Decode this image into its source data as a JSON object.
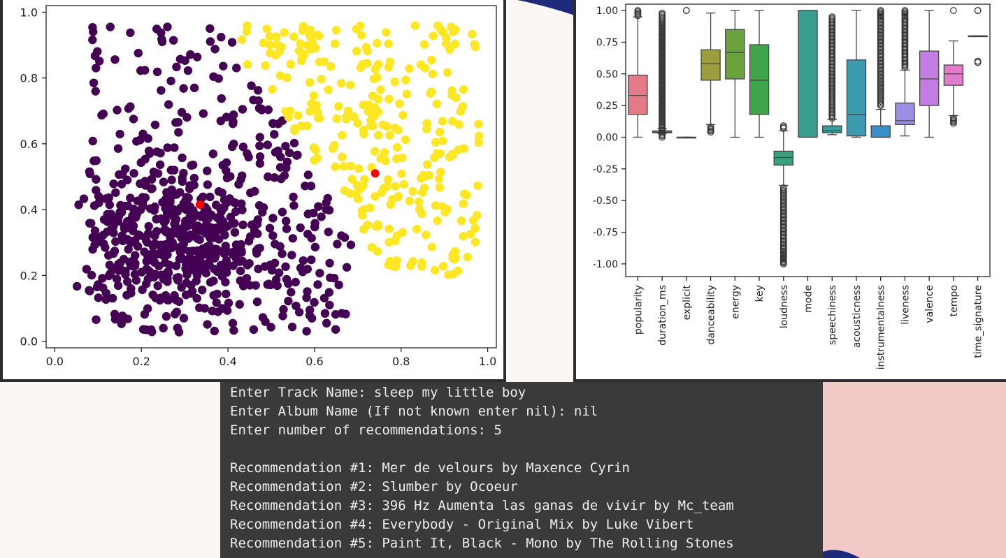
{
  "theme": {
    "page_bg": "#fbf7f2",
    "accent_navy": "#1f2a7a",
    "accent_pink": "#f3c9c8",
    "terminal_bg": "#3a3a3a",
    "terminal_fg": "#ededed"
  },
  "chart_data": [
    {
      "type": "scatter",
      "title": "",
      "xlabel": "",
      "ylabel": "",
      "xlim": [
        0.0,
        1.0
      ],
      "ylim": [
        0.0,
        1.0
      ],
      "xticks": [
        "0.0",
        "0.2",
        "0.4",
        "0.6",
        "0.8",
        "1.0"
      ],
      "yticks": [
        "0.0",
        "0.2",
        "0.4",
        "0.6",
        "0.8",
        "1.0"
      ],
      "clusters": [
        {
          "color": "#440154",
          "count": 720,
          "points": []
        },
        {
          "color": "#fde725",
          "count": 280,
          "points": []
        }
      ],
      "centroids": {
        "color": "#ff0000",
        "points": [
          [
            0.335,
            0.415
          ],
          [
            0.74,
            0.51
          ]
        ]
      },
      "grid": false
    },
    {
      "type": "box",
      "title": "",
      "xlabel": "",
      "ylabel": "",
      "ylim": [
        -1.1,
        1.05
      ],
      "yticks": [
        "-1.00",
        "-0.75",
        "-0.50",
        "-0.25",
        "0.00",
        "0.25",
        "0.50",
        "0.75",
        "1.00"
      ],
      "grid": false,
      "boxes": [
        {
          "label": "popularity",
          "color": "#e27a87",
          "whislo": 0.0,
          "q1": 0.18,
          "med": 0.33,
          "q3": 0.49,
          "whishi": 0.95,
          "fliers": [
            0.96,
            0.97,
            0.98,
            0.99,
            1.0
          ]
        },
        {
          "label": "duration_ms",
          "color": "#d08a4c",
          "whislo": 0.03,
          "q1": 0.035,
          "med": 0.04,
          "q3": 0.05,
          "whishi": 0.07,
          "fliers": [
            0.0,
            0.01,
            0.1,
            0.15,
            0.2,
            0.25,
            0.3,
            0.35,
            0.4,
            0.45,
            0.5,
            0.55,
            0.6,
            0.65,
            0.7,
            0.75,
            0.8,
            0.85,
            0.9,
            0.98
          ]
        },
        {
          "label": "explicit",
          "color": "#b8963f",
          "whislo": 0.0,
          "q1": 0.0,
          "med": 0.0,
          "q3": 0.0,
          "whishi": 0.0,
          "fliers": [
            1.0,
            1.0
          ]
        },
        {
          "label": "danceability",
          "color": "#9a9e3c",
          "whislo": 0.1,
          "q1": 0.45,
          "med": 0.58,
          "q3": 0.69,
          "whishi": 0.98,
          "fliers": [
            0.04,
            0.06,
            0.08
          ]
        },
        {
          "label": "energy",
          "color": "#6aa33c",
          "whislo": 0.0,
          "q1": 0.46,
          "med": 0.67,
          "q3": 0.85,
          "whishi": 1.0,
          "fliers": []
        },
        {
          "label": "key",
          "color": "#3fa54a",
          "whislo": 0.0,
          "q1": 0.18,
          "med": 0.45,
          "q3": 0.73,
          "whishi": 1.0,
          "fliers": []
        },
        {
          "label": "loudness",
          "color": "#3aa07a",
          "whislo": -0.38,
          "q1": -0.22,
          "med": -0.16,
          "q3": -0.11,
          "whishi": 0.05,
          "fliers": [
            0.07,
            0.09,
            -0.4,
            -0.5,
            -0.6,
            -0.7,
            -0.8,
            -0.9,
            -0.95,
            -1.0
          ]
        },
        {
          "label": "mode",
          "color": "#3a9e8f",
          "whislo": 0.0,
          "q1": 0.0,
          "med": 1.0,
          "q3": 1.0,
          "whishi": 1.0,
          "fliers": []
        },
        {
          "label": "speechiness",
          "color": "#3b9c9e",
          "whislo": 0.02,
          "q1": 0.035,
          "med": 0.05,
          "q3": 0.09,
          "whishi": 0.14,
          "fliers": [
            0.15,
            0.25,
            0.35,
            0.45,
            0.55,
            0.65,
            0.75,
            0.85,
            0.95
          ]
        },
        {
          "label": "acousticness",
          "color": "#3d9bb1",
          "whislo": 0.0,
          "q1": 0.01,
          "med": 0.18,
          "q3": 0.61,
          "whishi": 1.0,
          "fliers": []
        },
        {
          "label": "instrumentalness",
          "color": "#3a8fc7",
          "whislo": 0.0,
          "q1": 0.0,
          "med": 0.0,
          "q3": 0.09,
          "whishi": 0.22,
          "fliers": [
            0.25,
            0.35,
            0.45,
            0.55,
            0.65,
            0.75,
            0.85,
            0.95,
            1.0
          ]
        },
        {
          "label": "liveness",
          "color": "#9a8fe0",
          "whislo": 0.01,
          "q1": 0.1,
          "med": 0.13,
          "q3": 0.27,
          "whishi": 0.53,
          "fliers": [
            0.55,
            0.65,
            0.75,
            0.85,
            0.95,
            1.0
          ]
        },
        {
          "label": "valence",
          "color": "#c27de0",
          "whislo": 0.0,
          "q1": 0.25,
          "med": 0.46,
          "q3": 0.68,
          "whishi": 1.0,
          "fliers": []
        },
        {
          "label": "tempo",
          "color": "#e27acd",
          "whislo": 0.17,
          "q1": 0.41,
          "med": 0.5,
          "q3": 0.57,
          "whishi": 0.76,
          "fliers": [
            0.11,
            0.13,
            0.15,
            1.0
          ]
        },
        {
          "label": "time_signature",
          "color": "#e88aa8",
          "whislo": 0.8,
          "q1": 0.8,
          "med": 0.8,
          "q3": 0.8,
          "whishi": 0.8,
          "fliers": [
            0.59,
            0.6,
            1.0,
            1.0
          ]
        }
      ]
    }
  ],
  "terminal": {
    "lines": [
      "Enter Track Name: sleep my little boy",
      "Enter Album Name (If not known enter nil): nil",
      "Enter number of recommendations: 5",
      "",
      "Recommendation #1: Mer de velours by Maxence Cyrin",
      "Recommendation #2: Slumber by Ocoeur",
      "Recommendation #3: 396 Hz Aumenta las ganas de vivir by Mc_team",
      "Recommendation #4: Everybody - Original Mix by Luke Vibert",
      "Recommendation #5: Paint It, Black - Mono by The Rolling Stones"
    ]
  }
}
